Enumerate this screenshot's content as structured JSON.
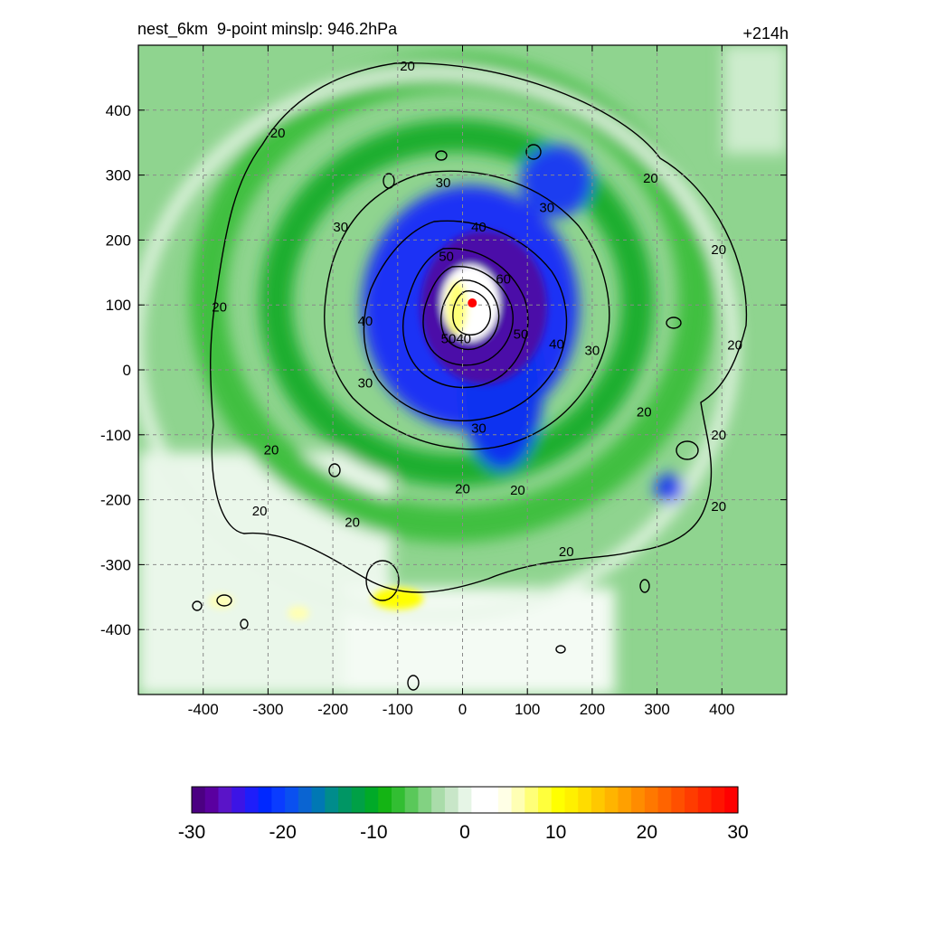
{
  "header": {
    "title_left": "nest_6km  9-point minslp: 946.2hPa",
    "title_right": "+214h"
  },
  "chart_data": {
    "type": "heatmap",
    "title": "nest_6km  9-point minslp: 946.2hPa",
    "time_label": "+214h",
    "xlabel": "",
    "ylabel": "",
    "xlim": [
      -500,
      500
    ],
    "ylim": [
      -500,
      500
    ],
    "x_ticks": [
      -400,
      -300,
      -200,
      -100,
      0,
      100,
      200,
      300,
      400
    ],
    "y_ticks": [
      -400,
      -300,
      -200,
      -100,
      0,
      100,
      200,
      300,
      400
    ],
    "x_tick_labels": [
      "-400",
      "-300",
      "-200",
      "-100",
      "0",
      "100",
      "200",
      "300",
      "400"
    ],
    "y_tick_labels": [
      "400",
      "300",
      "200",
      "100",
      "0",
      "-100",
      "-200",
      "-300",
      "-400"
    ],
    "grid": true,
    "center": {
      "x": 15,
      "y": 103
    },
    "contour_levels": [
      20,
      30,
      40,
      50,
      60
    ],
    "contour_labels": [
      {
        "text": "20",
        "x": -85,
        "y": 468
      },
      {
        "text": "20",
        "x": -285,
        "y": 365
      },
      {
        "text": "20",
        "x": -375,
        "y": 97
      },
      {
        "text": "20",
        "x": -295,
        "y": -123
      },
      {
        "text": "20",
        "x": -313,
        "y": -217
      },
      {
        "text": "20",
        "x": -170,
        "y": -235
      },
      {
        "text": "20",
        "x": 0,
        "y": -183
      },
      {
        "text": "20",
        "x": 85,
        "y": -185
      },
      {
        "text": "20",
        "x": 160,
        "y": -280
      },
      {
        "text": "20",
        "x": 290,
        "y": 295
      },
      {
        "text": "20",
        "x": 395,
        "y": 185
      },
      {
        "text": "20",
        "x": 420,
        "y": 38
      },
      {
        "text": "20",
        "x": 280,
        "y": -65
      },
      {
        "text": "20",
        "x": 395,
        "y": -100
      },
      {
        "text": "20",
        "x": 395,
        "y": -210
      },
      {
        "text": "30",
        "x": -30,
        "y": 288
      },
      {
        "text": "30",
        "x": 130,
        "y": 250
      },
      {
        "text": "30",
        "x": -188,
        "y": 220
      },
      {
        "text": "30",
        "x": -150,
        "y": -20
      },
      {
        "text": "30",
        "x": 25,
        "y": -90
      },
      {
        "text": "30",
        "x": 200,
        "y": 30
      },
      {
        "text": "40",
        "x": 25,
        "y": 220
      },
      {
        "text": "40",
        "x": -150,
        "y": 75
      },
      {
        "text": "40",
        "x": 145,
        "y": 40
      },
      {
        "text": "50",
        "x": -25,
        "y": 175
      },
      {
        "text": "50",
        "x": 90,
        "y": 55
      },
      {
        "text": "60",
        "x": 63,
        "y": 140
      },
      {
        "text": "5040",
        "x": -10,
        "y": 48
      }
    ],
    "colorbar": {
      "ticks": [
        -30,
        -20,
        -10,
        0,
        10,
        20,
        30
      ],
      "tick_labels": [
        "-30",
        "-20",
        "-10",
        "0",
        "10",
        "20",
        "30"
      ],
      "colors": [
        "#4b0082",
        "#5a00a0",
        "#5a14c8",
        "#3c14e6",
        "#1e1efa",
        "#0028ff",
        "#0a3cff",
        "#0a50f0",
        "#0a64d2",
        "#0078b4",
        "#008c8c",
        "#009664",
        "#00a046",
        "#00aa28",
        "#14b414",
        "#32be32",
        "#5ac85a",
        "#82d282",
        "#aadcaa",
        "#c8e6c8",
        "#e6f5e6",
        "#ffffff",
        "#ffffff",
        "#ffffe6",
        "#ffffb4",
        "#ffff78",
        "#ffff3c",
        "#ffff00",
        "#fff000",
        "#ffdc00",
        "#ffc800",
        "#ffb400",
        "#ffa000",
        "#ff8c00",
        "#ff7800",
        "#ff6400",
        "#ff5000",
        "#ff3c00",
        "#ff2800",
        "#ff1400",
        "#ff0000"
      ]
    }
  }
}
